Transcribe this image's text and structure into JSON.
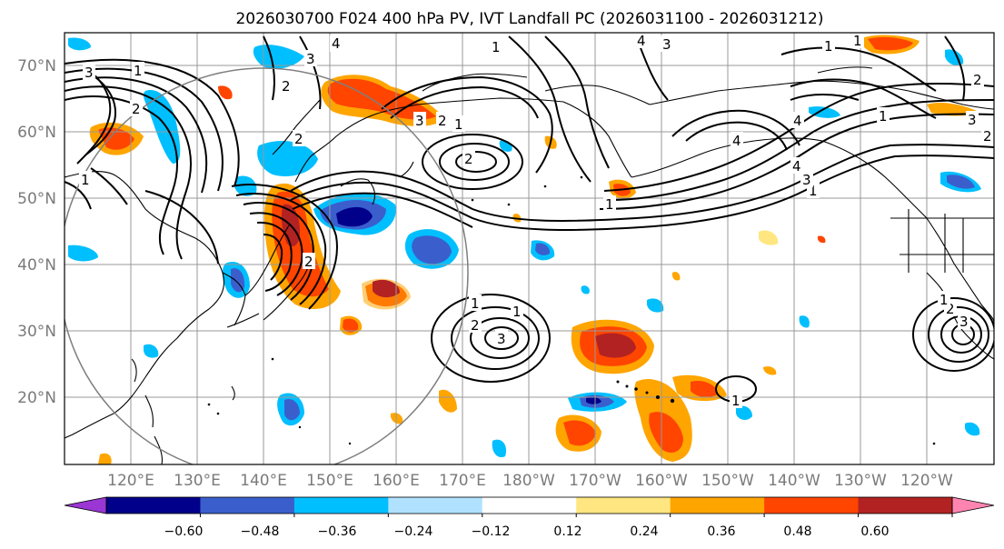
{
  "title": "2026030700 F024 400 hPa PV, IVT Landfall PC (2026031100 - 2026031212)",
  "lat_labels": [
    "70°N",
    "60°N",
    "50°N",
    "40°N",
    "30°N",
    "20°N"
  ],
  "lon_labels": [
    "120°E",
    "130°E",
    "140°E",
    "150°E",
    "160°E",
    "170°E",
    "180°W",
    "170°W",
    "160°W",
    "150°W",
    "140°W",
    "130°W",
    "120°W"
  ],
  "colorbar": {
    "ticks": [
      "−0.60",
      "−0.48",
      "−0.36",
      "−0.24",
      "−0.12",
      "0.12",
      "0.24",
      "0.36",
      "0.48",
      "0.60"
    ],
    "colors": [
      "#9a36d4",
      "#00008b",
      "#3a5fcd",
      "#00bfff",
      "#b0e2ff",
      "#ffffff",
      "#ffe680",
      "#ffa500",
      "#ff4500",
      "#b22222",
      "#ff85b0"
    ]
  },
  "contour_labels": [
    "4",
    "3",
    "2",
    "1",
    "1",
    "2",
    "3",
    "1",
    "2",
    "4",
    "3",
    "3",
    "2",
    "2",
    "1",
    "1",
    "1",
    "2",
    "3",
    "2",
    "1",
    "1",
    "2",
    "3",
    "4",
    "1",
    "1",
    "2",
    "3",
    "4",
    "1",
    "4",
    "1",
    "3",
    "2",
    "1"
  ],
  "map_extent": {
    "lon": [
      "110°E",
      "250°E"
    ],
    "lat": [
      "10°N",
      "75°N"
    ]
  }
}
